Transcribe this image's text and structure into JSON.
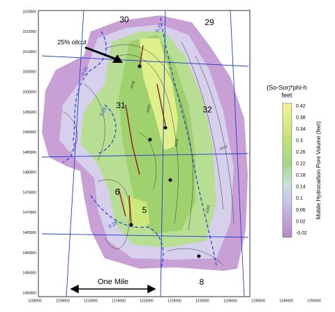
{
  "map": {
    "section_labels": [
      "30",
      "29",
      "31",
      "32",
      "6",
      "5",
      "8"
    ],
    "callout": "25% oilcut",
    "scale_label": "One Mile",
    "contour_labels": [
      "0.25",
      "0.25",
      "0.25",
      "0.25",
      "-6240",
      "-6260",
      "-6200",
      "-6220",
      "-6300"
    ],
    "y_axis_labels": [
      "1520000",
      "1515000",
      "1510000",
      "1505000",
      "1500000",
      "1495000",
      "1490000",
      "1485000",
      "1480000",
      "1475000",
      "1470000",
      "1465000",
      "1460000",
      "1455000",
      "1450000"
    ],
    "x_axis_labels": [
      "1200000",
      "1205000",
      "1210000",
      "1215000",
      "1220000",
      "1225000",
      "1230000",
      "1235000",
      "1240000",
      "1245000",
      "1250000"
    ]
  },
  "legend": {
    "title": "(So-Sor)*phi-h",
    "unit": "feet",
    "axis_title": "Mobile Hydrocarbon Pore Volume (feet)",
    "ticks": [
      "0.42",
      "0.38",
      "0.34",
      "0.3",
      "0.26",
      "0.22",
      "0.18",
      "0.14",
      "0.1",
      "0.06",
      "0.02",
      "-0.02"
    ]
  }
}
